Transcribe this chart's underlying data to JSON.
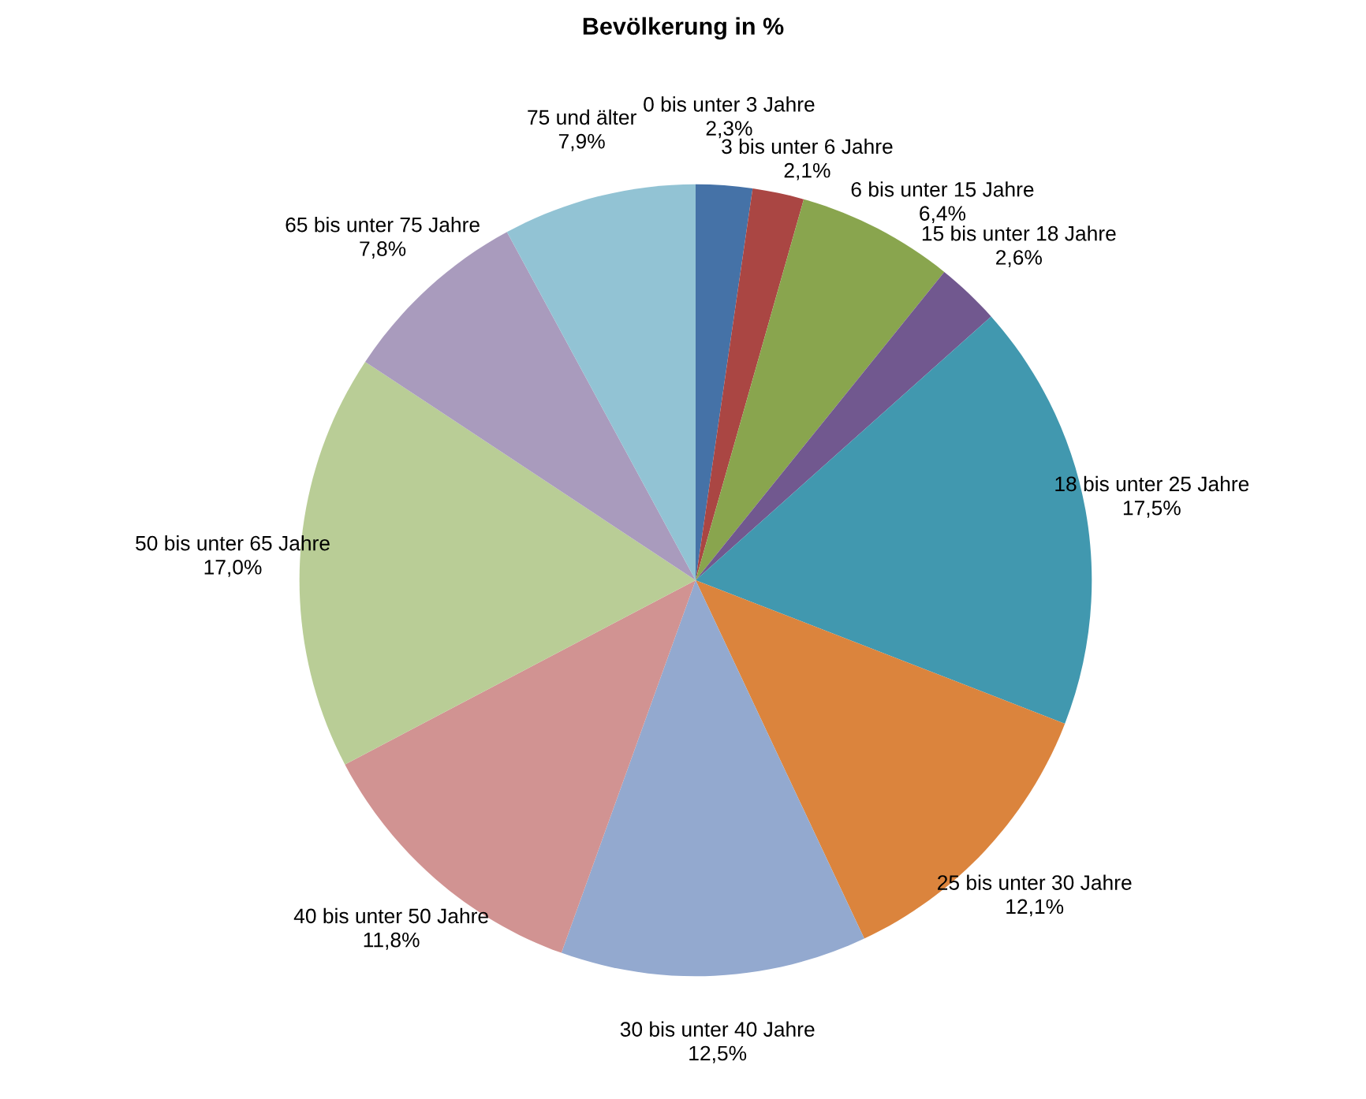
{
  "chart_data": {
    "type": "pie",
    "title": "Bevölkerung in %",
    "categories": [
      "0 bis unter 3 Jahre",
      "3 bis unter 6 Jahre",
      "6 bis unter 15 Jahre",
      "15 bis unter 18 Jahre",
      "18 bis unter 25 Jahre",
      "25 bis unter 30 Jahre",
      "30 bis unter 40 Jahre",
      "40 bis unter 50 Jahre",
      "50 bis unter 65 Jahre",
      "65 bis unter 75 Jahre",
      "75 und älter"
    ],
    "values": [
      2.3,
      2.1,
      6.4,
      2.6,
      17.5,
      12.1,
      12.5,
      11.8,
      17.0,
      7.8,
      7.9
    ],
    "value_labels": [
      "2,3%",
      "2,1%",
      "6,4%",
      "2,6%",
      "17,5%",
      "12,1%",
      "12,5%",
      "11,8%",
      "17,0%",
      "7,8%",
      "7,9%"
    ],
    "colors": [
      "#4572a7",
      "#aa4643",
      "#89a54e",
      "#71588f",
      "#4198af",
      "#db843d",
      "#93a9cf",
      "#d19392",
      "#b9cd96",
      "#a99bbd",
      "#92c3d4"
    ],
    "legend": false
  }
}
